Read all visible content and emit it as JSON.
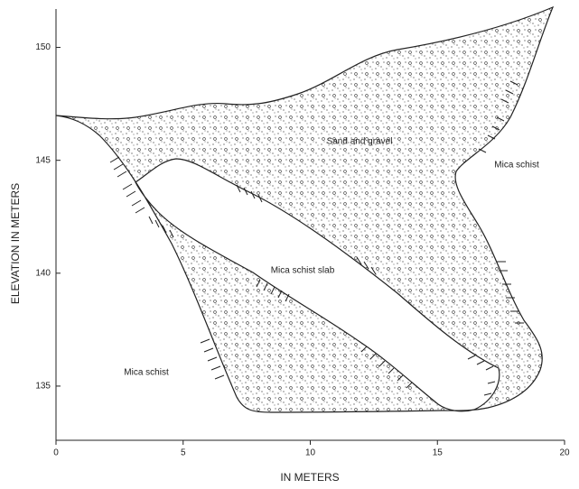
{
  "chart_data": {
    "type": "cross-section",
    "xlabel": "IN METERS",
    "ylabel": "ELEVATION IN METERS",
    "xlim": [
      0,
      20
    ],
    "xticks": [
      0,
      5,
      10,
      15,
      20
    ],
    "ylim": [
      132.6,
      151.7
    ],
    "yticks": [
      135,
      140,
      145,
      150
    ],
    "annotations": [
      "Sand and gravel",
      "Mica schist",
      "Mica schist slab",
      "Mica schist"
    ]
  }
}
